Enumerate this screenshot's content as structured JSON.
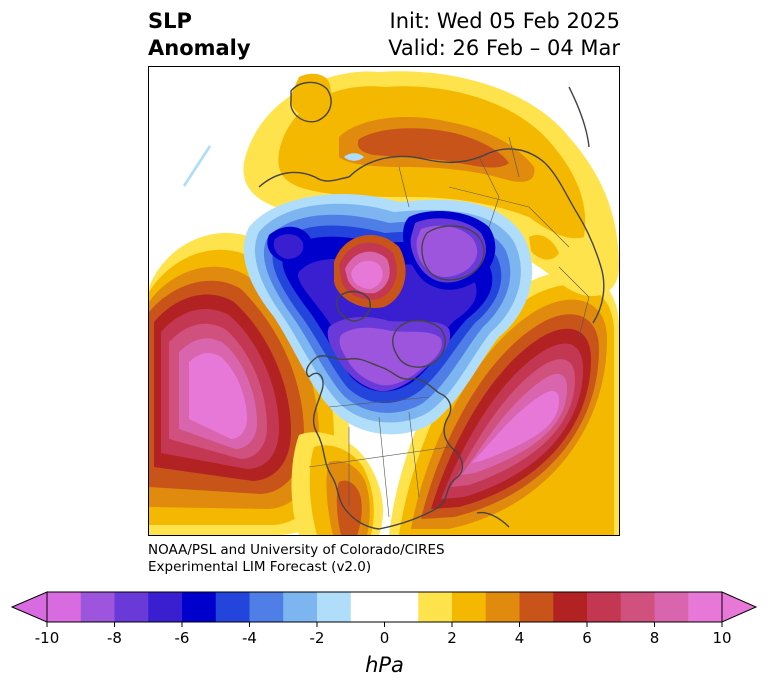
{
  "title": {
    "left_line1": "SLP",
    "left_line2": "Anomaly",
    "init": "Init: Wed 05 Feb 2025",
    "valid": "Valid: 26 Feb – 04 Mar"
  },
  "credit": {
    "line1": "NOAA/PSL and University of Colorado/CIRES",
    "line2": "Experimental LIM Forecast (v2.0)"
  },
  "colorbar": {
    "unit": "hPa",
    "ticks": [
      "-10",
      "-8",
      "-6",
      "-4",
      "-2",
      "0",
      "2",
      "4",
      "6",
      "8",
      "10"
    ],
    "colors": [
      "#d86be0",
      "#9d55de",
      "#6a3ad8",
      "#3a1fd0",
      "#0000cd",
      "#2345dc",
      "#4f7ee6",
      "#7db5f0",
      "#b0defa",
      "#ffffff",
      "#ffffff",
      "#ffe34d",
      "#f5b800",
      "#e08a0e",
      "#c8541a",
      "#b22222",
      "#c33752",
      "#d0507e",
      "#d865ad",
      "#e878d8"
    ]
  }
}
